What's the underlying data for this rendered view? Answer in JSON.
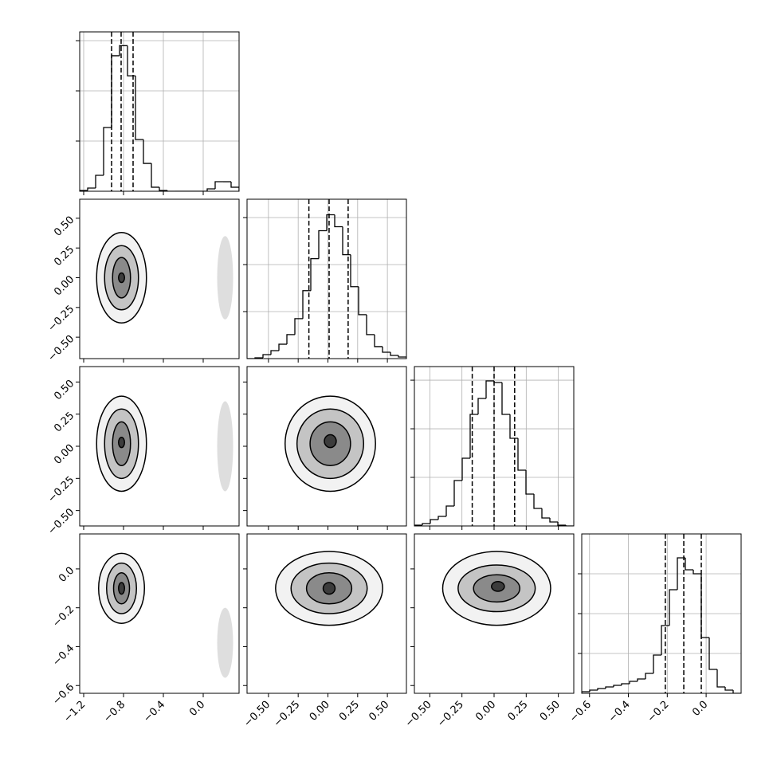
{
  "chart_data": {
    "type": "corner",
    "color": "#000000",
    "params": [
      {
        "lim": [
          -1.24,
          0.36
        ],
        "ticks": [
          {
            "value": -1.2,
            "label": "−1.2"
          },
          {
            "value": -0.8,
            "label": "−0.8"
          },
          {
            "value": -0.4,
            "label": "−0.4"
          },
          {
            "value": 0,
            "label": "0.0"
          }
        ]
      },
      {
        "lim": [
          -0.68,
          0.66
        ],
        "ticks": [
          {
            "value": -0.5,
            "label": "−0.50"
          },
          {
            "value": -0.25,
            "label": "−0.25"
          },
          {
            "value": 0,
            "label": "0.00"
          },
          {
            "value": 0.25,
            "label": "0.25"
          },
          {
            "value": 0.5,
            "label": "0.50"
          }
        ]
      },
      {
        "lim": [
          -0.62,
          0.62
        ],
        "ticks": [
          {
            "value": -0.5,
            "label": "−0.50"
          },
          {
            "value": -0.25,
            "label": "−0.25"
          },
          {
            "value": 0,
            "label": "0.00"
          },
          {
            "value": 0.25,
            "label": "0.25"
          },
          {
            "value": 0.5,
            "label": "0.50"
          }
        ]
      },
      {
        "lim": [
          -0.64,
          0.18
        ],
        "ticks": [
          {
            "value": -0.6,
            "label": "−0.6"
          },
          {
            "value": -0.4,
            "label": "−0.4"
          },
          {
            "value": -0.2,
            "label": "−0.2"
          },
          {
            "value": 0,
            "label": "0.0"
          }
        ]
      }
    ],
    "histograms": [
      {
        "bins": [
          -1.24,
          -1.16,
          -1.08,
          -1.0,
          -0.92,
          -0.84,
          -0.76,
          -0.68,
          -0.6,
          -0.52,
          -0.44,
          -0.36,
          -0.28,
          -0.2,
          -0.12,
          -0.04,
          0.04,
          0.12,
          0.2,
          0.28,
          0.36
        ],
        "counts": [
          16,
          63,
          317,
          1270,
          2700,
          2900,
          2300,
          1030,
          555,
          80,
          16,
          0,
          0,
          0,
          0,
          0,
          48,
          190,
          190,
          80
        ],
        "ylim": [
          0,
          3175
        ],
        "yticks": [
          1000,
          2000,
          3000
        ],
        "quantiles": [
          -0.92,
          -0.824,
          -0.704
        ]
      },
      {
        "bins": [
          -0.68,
          -0.613,
          -0.546,
          -0.479,
          -0.412,
          -0.345,
          -0.278,
          -0.211,
          -0.144,
          -0.077,
          -0.01,
          0.057,
          0.124,
          0.191,
          0.258,
          0.325,
          0.392,
          0.459,
          0.526,
          0.593,
          0.66
        ],
        "counts": [
          0,
          17,
          85,
          170,
          306,
          510,
          850,
          1445,
          2125,
          2720,
          3060,
          2805,
          2210,
          1530,
          935,
          510,
          255,
          136,
          68,
          34
        ],
        "ylim": [
          0,
          3390
        ],
        "yticks": [
          1000,
          2000,
          3000
        ],
        "quantiles": [
          -0.16,
          0.01,
          0.17
        ]
      },
      {
        "bins": [
          -0.62,
          -0.558,
          -0.496,
          -0.434,
          -0.372,
          -0.31,
          -0.248,
          -0.186,
          -0.124,
          -0.062,
          0,
          0.062,
          0.124,
          0.186,
          0.248,
          0.31,
          0.372,
          0.434,
          0.496,
          0.558,
          0.62
        ],
        "counts": [
          16,
          49,
          131,
          197,
          410,
          935,
          1394,
          2296,
          2624,
          2985,
          2952,
          2296,
          1804,
          1148,
          656,
          361,
          164,
          82,
          16,
          0
        ],
        "ylim": [
          0,
          3280
        ],
        "yticks": [
          1000,
          2000,
          3000
        ],
        "quantiles": [
          -0.17,
          0.0,
          0.16
        ]
      },
      {
        "bins": [
          -0.64,
          -0.599,
          -0.558,
          -0.517,
          -0.476,
          -0.435,
          -0.394,
          -0.353,
          -0.312,
          -0.271,
          -0.23,
          -0.189,
          -0.148,
          -0.107,
          -0.066,
          -0.025,
          0.016,
          0.057,
          0.098,
          0.139,
          0.18
        ],
        "counts": [
          40,
          80,
          120,
          160,
          200,
          240,
          300,
          360,
          500,
          960,
          1700,
          2600,
          3400,
          3100,
          3000,
          1400,
          600,
          160,
          80,
          0
        ],
        "ylim": [
          0,
          4000
        ],
        "yticks": [
          1000,
          2000,
          3000
        ],
        "quantiles": [
          -0.21,
          -0.115,
          -0.025
        ]
      }
    ],
    "panels": [
      {
        "contours": [
          {
            "x": -0.82,
            "y": 0.0,
            "rx": 0.25,
            "ry": 0.38
          },
          {
            "x": -0.82,
            "y": 0.0,
            "rx": 0.17,
            "ry": 0.27
          },
          {
            "x": -0.82,
            "y": 0.0,
            "rx": 0.09,
            "ry": 0.17
          },
          {
            "x": -0.82,
            "y": 0.0,
            "rx": 0.03,
            "ry": 0.04
          }
        ],
        "clusters": [
          {
            "x": 0.22,
            "y": 0.0,
            "rx": 0.08,
            "ry": 0.35
          }
        ]
      },
      {
        "contours": [
          {
            "x": -0.82,
            "y": 0.02,
            "rx": 0.25,
            "ry": 0.37
          },
          {
            "x": -0.82,
            "y": 0.02,
            "rx": 0.17,
            "ry": 0.27
          },
          {
            "x": -0.82,
            "y": 0.02,
            "rx": 0.09,
            "ry": 0.17
          },
          {
            "x": -0.82,
            "y": 0.03,
            "rx": 0.03,
            "ry": 0.04
          }
        ],
        "clusters": [
          {
            "x": 0.22,
            "y": 0.0,
            "rx": 0.08,
            "ry": 0.35
          }
        ]
      },
      {
        "contours": [
          {
            "x": 0.02,
            "y": 0.02,
            "rx": 0.38,
            "ry": 0.37
          },
          {
            "x": 0.02,
            "y": 0.02,
            "rx": 0.28,
            "ry": 0.27
          },
          {
            "x": 0.02,
            "y": 0.02,
            "rx": 0.17,
            "ry": 0.17
          },
          {
            "x": 0.02,
            "y": 0.04,
            "rx": 0.05,
            "ry": 0.05
          }
        ],
        "clusters": []
      },
      {
        "contours": [
          {
            "x": -0.82,
            "y": -0.1,
            "rx": 0.23,
            "ry": 0.18
          },
          {
            "x": -0.82,
            "y": -0.1,
            "rx": 0.15,
            "ry": 0.13
          },
          {
            "x": -0.82,
            "y": -0.1,
            "rx": 0.08,
            "ry": 0.08
          },
          {
            "x": -0.82,
            "y": -0.1,
            "rx": 0.03,
            "ry": 0.03
          }
        ],
        "clusters": [
          {
            "x": 0.22,
            "y": -0.38,
            "rx": 0.08,
            "ry": 0.18
          }
        ]
      },
      {
        "contours": [
          {
            "x": 0.01,
            "y": -0.1,
            "rx": 0.45,
            "ry": 0.19
          },
          {
            "x": 0.01,
            "y": -0.1,
            "rx": 0.32,
            "ry": 0.13
          },
          {
            "x": 0.01,
            "y": -0.1,
            "rx": 0.19,
            "ry": 0.08
          },
          {
            "x": 0.01,
            "y": -0.1,
            "rx": 0.05,
            "ry": 0.03
          }
        ],
        "clusters": []
      },
      {
        "contours": [
          {
            "x": 0.02,
            "y": -0.1,
            "rx": 0.42,
            "ry": 0.19
          },
          {
            "x": 0.02,
            "y": -0.1,
            "rx": 0.3,
            "ry": 0.12
          },
          {
            "x": 0.02,
            "y": -0.1,
            "rx": 0.18,
            "ry": 0.07
          },
          {
            "x": 0.03,
            "y": -0.09,
            "rx": 0.05,
            "ry": 0.025
          }
        ],
        "clusters": []
      }
    ]
  }
}
